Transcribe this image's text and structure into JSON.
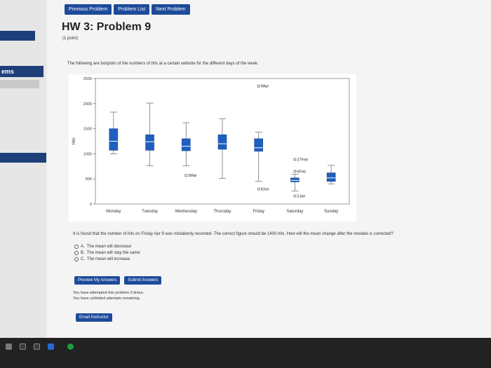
{
  "nav": {
    "previous": "Previous Problem",
    "list": "Problem List",
    "next": "Next Problem"
  },
  "left_panel": {
    "label": "ems"
  },
  "problem": {
    "title": "HW 3: Problem 9",
    "points": "(1 point)",
    "description": "The following are boxplots of the numbers of hits at a certain website for the different days of the week.",
    "question": "It is found that the number of hits on Friday Apr 9 was mistakenly recorded. The correct figure should be 1400 hits. How will the mean change after the mistake is corrected?",
    "options": [
      {
        "letter": "A.",
        "text": "The mean will decrease"
      },
      {
        "letter": "B.",
        "text": "The mean will stay the same"
      },
      {
        "letter": "C.",
        "text": "The mean will increase"
      }
    ]
  },
  "actions": {
    "preview": "Preview My Answers",
    "submit": "Submit Answers"
  },
  "attempts": {
    "line1": "You have attempted this problem 0 times.",
    "line2": "You have unlimited attempts remaining."
  },
  "email": "Email Instructor",
  "colors": {
    "box": "#1f5fbf",
    "button": "#1e4a9a"
  },
  "chart_data": {
    "type": "boxplot",
    "ylabel": "Hits",
    "ylim": [
      0,
      2500
    ],
    "yticks": [
      0,
      500,
      1000,
      1500,
      2000,
      2500
    ],
    "categories": [
      "Monday",
      "Tuesday",
      "Wednesday",
      "Thursday",
      "Friday",
      "Saturday",
      "Sunday"
    ],
    "boxes": [
      {
        "min": 1000,
        "q1": 1070,
        "median": 1250,
        "q3": 1500,
        "max": 1830
      },
      {
        "min": 760,
        "q1": 1070,
        "median": 1240,
        "q3": 1380,
        "max": 2010
      },
      {
        "min": 760,
        "q1": 1060,
        "median": 1150,
        "q3": 1300,
        "max": 1620
      },
      {
        "min": 510,
        "q1": 1090,
        "median": 1200,
        "q3": 1380,
        "max": 1700
      },
      {
        "min": 450,
        "q1": 1050,
        "median": 1120,
        "q3": 1300,
        "max": 1430
      },
      {
        "min": 260,
        "q1": 440,
        "median": 470,
        "q3": 520,
        "max": 590
      },
      {
        "min": 400,
        "q1": 450,
        "median": 520,
        "q3": 620,
        "max": 770
      }
    ],
    "outliers": [
      {
        "category": "Wednesday",
        "value": 570,
        "label": "3Mar"
      },
      {
        "category": "Friday",
        "value": 2350,
        "label": "9Apr"
      },
      {
        "category": "Friday",
        "value": 300,
        "label": "8Jan"
      },
      {
        "category": "Saturday",
        "value": 890,
        "label": "27Feb"
      },
      {
        "category": "Saturday",
        "value": 650,
        "label": "6Feb"
      },
      {
        "category": "Saturday",
        "value": 160,
        "label": "2Jan"
      }
    ]
  }
}
